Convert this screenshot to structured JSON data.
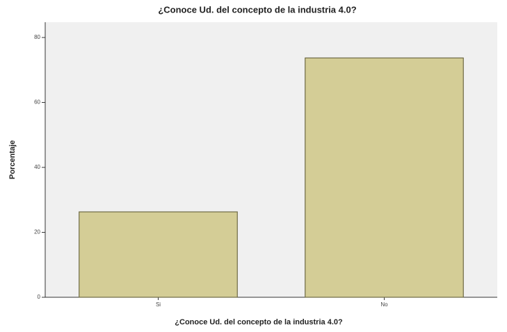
{
  "chart_data": {
    "type": "bar",
    "title": "¿Conoce Ud. del concepto de la industria 4.0?",
    "x_label": "¿Conoce Ud. del concepto de la industria 4.0?",
    "y_label": "Porcentaje",
    "categories": [
      "Si",
      "No"
    ],
    "values": [
      26.3,
      73.7
    ],
    "color": "#d4cd96",
    "ylim": [
      0,
      84.7
    ],
    "yticks": [
      0,
      20,
      40,
      60,
      80
    ]
  }
}
